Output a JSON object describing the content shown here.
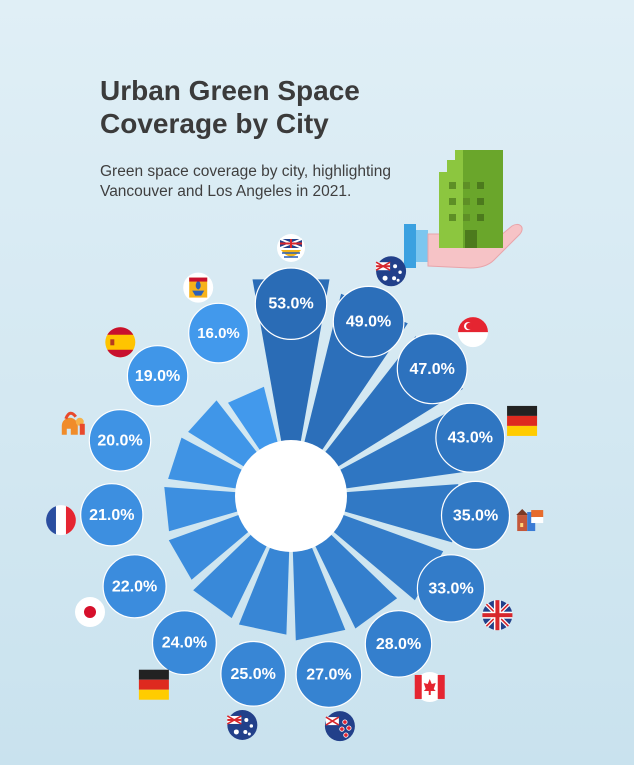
{
  "header": {
    "title": "Urban Green Space Coverage by City",
    "subtitle": "Green space coverage by city, highlighting Vancouver and Los Angeles in 2021."
  },
  "icons": {
    "hero": "hand-holding-green-building-icon",
    "flags": [
      "uk-crest-flag-icon",
      "australia-flag-icon",
      "singapore-flag-icon",
      "germany-flag-icon",
      "netherlands-houses-icon",
      "uk-flag-icon",
      "canada-flag-icon",
      "new-zealand-flag-icon",
      "australia-flag-icon",
      "germany-flag-icon",
      "japan-flag-icon",
      "france-flag-icon",
      "spartan-helmet-icon",
      "spain-flag-icon",
      "quebec-flag-icon"
    ]
  },
  "colors": {
    "bar_dark": "#2a6cb6",
    "bar_light": "#4299ec",
    "outline": "#ffffff"
  },
  "chart_data": {
    "type": "bar",
    "layout": "radial",
    "title": "Urban Green Space Coverage by City",
    "subtitle": "Green space coverage by city, highlighting Vancouver and Los Angeles in 2021.",
    "unit": "%",
    "values": [
      53.0,
      49.0,
      47.0,
      43.0,
      35.0,
      33.0,
      28.0,
      27.0,
      25.0,
      24.0,
      22.0,
      21.0,
      20.0,
      19.0,
      16.0
    ],
    "labels": [
      "53.0%",
      "49.0%",
      "47.0%",
      "43.0%",
      "35.0%",
      "33.0%",
      "28.0%",
      "27.0%",
      "25.0%",
      "24.0%",
      "22.0%",
      "21.0%",
      "20.0%",
      "19.0%",
      "16.0%"
    ]
  }
}
